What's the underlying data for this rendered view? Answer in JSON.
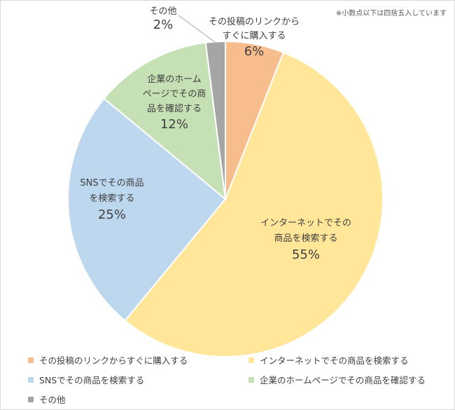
{
  "chart_data": {
    "type": "pie",
    "note": "※小数点以下は四捨五入しています",
    "slices": [
      {
        "name": "その投稿のリンクからすぐに購入する",
        "label_lines": [
          "その投稿のリンクから",
          "すぐに購入する"
        ],
        "value": 6,
        "value_label": "6%",
        "color": "#f8bd8c"
      },
      {
        "name": "インターネットでその商品を検索する",
        "label_lines": [
          "インターネットでその",
          "商品を検索する"
        ],
        "value": 55,
        "value_label": "55%",
        "color": "#ffe699"
      },
      {
        "name": "SNSでその商品を検索する",
        "label_lines": [
          "SNSでその商品",
          "を検索する"
        ],
        "value": 25,
        "value_label": "25%",
        "color": "#bdd7ee"
      },
      {
        "name": "企業のホームページでその商品を確認する",
        "label_lines": [
          "企業のホーム",
          "ページでその商",
          "品を確認する"
        ],
        "value": 12,
        "value_label": "12%",
        "color": "#c5e0b4"
      },
      {
        "name": "その他",
        "label_lines": [
          "その他"
        ],
        "value": 2,
        "value_label": "2%",
        "color": "#a5a5a5"
      }
    ],
    "legend": [
      "その投稿のリンクからすぐに購入する",
      "インターネットでその商品を検索する",
      "SNSでその商品を検索する",
      "企業のホームページでその商品を確認する",
      "その他"
    ],
    "legend_position": "bottom"
  }
}
